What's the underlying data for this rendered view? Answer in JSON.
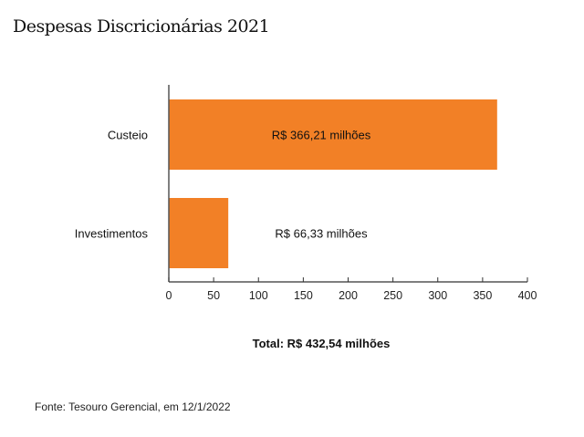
{
  "chart_data": {
    "type": "bar",
    "orientation": "horizontal",
    "title": "Despesas Discricionárias 2021",
    "categories": [
      "Custeio",
      "Investimentos"
    ],
    "values": [
      366.21,
      66.33
    ],
    "data_labels": [
      "R$ 366,21 milhões",
      "R$ 66,33 milhões"
    ],
    "xlim": [
      0,
      400
    ],
    "xticks": [
      0,
      50,
      100,
      150,
      200,
      250,
      300,
      350,
      400
    ],
    "grid": false,
    "bar_color": "#f28026",
    "total_label": "Total: R$ 432,54 milhões",
    "source": "Fonte: Tesouro Gerencial, em 12/1/2022"
  }
}
